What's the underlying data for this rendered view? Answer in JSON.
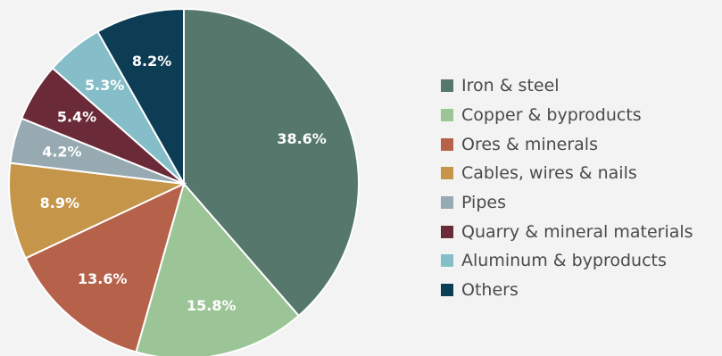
{
  "chart_data": {
    "type": "pie",
    "title": "",
    "start_angle_deg": 0,
    "direction": "clockwise",
    "legend_position": "right",
    "slices": [
      {
        "label": "Iron & steel",
        "value": 38.6,
        "value_label": "38.6%",
        "color": "#55776c"
      },
      {
        "label": "Copper & byproducts",
        "value": 15.8,
        "value_label": "15.8%",
        "color": "#9cc597"
      },
      {
        "label": "Ores & minerals",
        "value": 13.6,
        "value_label": "13.6%",
        "color": "#b6624a"
      },
      {
        "label": "Cables, wires & nails",
        "value": 8.9,
        "value_label": "8.9%",
        "color": "#c5964a"
      },
      {
        "label": "Pipes",
        "value": 4.2,
        "value_label": "4.2%",
        "color": "#97aab2"
      },
      {
        "label": "Quarry & mineral materials",
        "value": 5.4,
        "value_label": "5.4%",
        "color": "#6a2a38"
      },
      {
        "label": "Aluminum & byproducts",
        "value": 5.3,
        "value_label": "5.3%",
        "color": "#85bdc8"
      },
      {
        "label": "Others",
        "value": 8.2,
        "value_label": "8.2%",
        "color": "#0c3d55"
      }
    ]
  }
}
